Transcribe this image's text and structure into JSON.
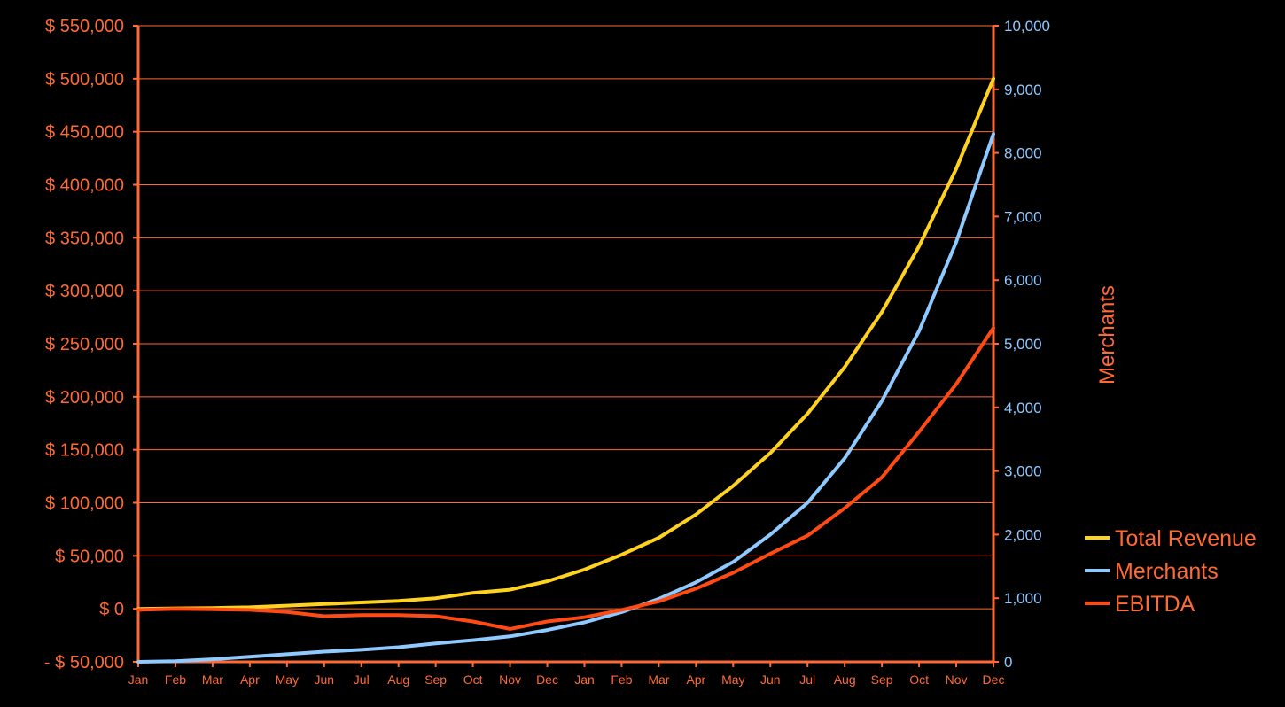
{
  "chart_data": {
    "type": "line",
    "title": "",
    "xlabel": "",
    "ylabel": "",
    "y2label": "Merchants",
    "categories": [
      "Jan",
      "Feb",
      "Mar",
      "Apr",
      "May",
      "Jun",
      "Jul",
      "Aug",
      "Sep",
      "Oct",
      "Nov",
      "Dec",
      "Jan",
      "Feb",
      "Mar",
      "Apr",
      "May",
      "Jun",
      "Jul",
      "Aug",
      "Sep",
      "Oct",
      "Nov",
      "Dec"
    ],
    "ylim": [
      -50000,
      550000
    ],
    "y2lim": [
      0,
      10000
    ],
    "y_ticks": [
      -50000,
      0,
      50000,
      100000,
      150000,
      200000,
      250000,
      300000,
      350000,
      400000,
      450000,
      500000,
      550000
    ],
    "y_tick_labels": [
      "- $ 50,000",
      "$ 0",
      "$ 50,000",
      "$ 100,000",
      "$ 150,000",
      "$ 200,000",
      "$ 250,000",
      "$ 300,000",
      "$ 350,000",
      "$ 400,000",
      "$ 450,000",
      "$ 500,000",
      "$ 550,000"
    ],
    "y2_ticks": [
      0,
      1000,
      2000,
      3000,
      4000,
      5000,
      6000,
      7000,
      8000,
      9000,
      10000
    ],
    "y2_tick_labels": [
      "0",
      "1,000",
      "2,000",
      "3,000",
      "4,000",
      "5,000",
      "6,000",
      "7,000",
      "8,000",
      "9,000",
      "10,000"
    ],
    "grid": true,
    "legend_position": "bottom-right",
    "series": [
      {
        "name": "Total Revenue",
        "axis": "left",
        "color": "#ffd21f",
        "values": [
          0,
          500,
          800,
          1500,
          3000,
          4500,
          6000,
          7500,
          10000,
          15000,
          18000,
          26000,
          37000,
          51000,
          67000,
          89000,
          116000,
          147000,
          184000,
          228000,
          280000,
          342000,
          415000,
          500000
        ]
      },
      {
        "name": "Merchants",
        "axis": "right",
        "color": "#8ec9ff",
        "values": [
          0,
          10,
          40,
          80,
          120,
          160,
          190,
          230,
          290,
          340,
          400,
          500,
          620,
          780,
          990,
          1250,
          1570,
          2000,
          2500,
          3200,
          4100,
          5200,
          6600,
          8300
        ]
      },
      {
        "name": "EBITDA",
        "axis": "left",
        "color": "#ff4a14",
        "values": [
          -1000,
          0,
          -500,
          -1000,
          -3000,
          -7000,
          -6000,
          -6000,
          -7000,
          -12000,
          -19000,
          -12000,
          -8000,
          -1000,
          7000,
          19000,
          34000,
          52000,
          69000,
          95000,
          124000,
          167000,
          212000,
          265000
        ]
      }
    ]
  },
  "colors": {
    "background": "#000000",
    "axis": "#ff6a33",
    "gridline": "#ff6a33",
    "left_tick_text": "#ff6a33",
    "right_tick_text": "#8ec9ff"
  }
}
